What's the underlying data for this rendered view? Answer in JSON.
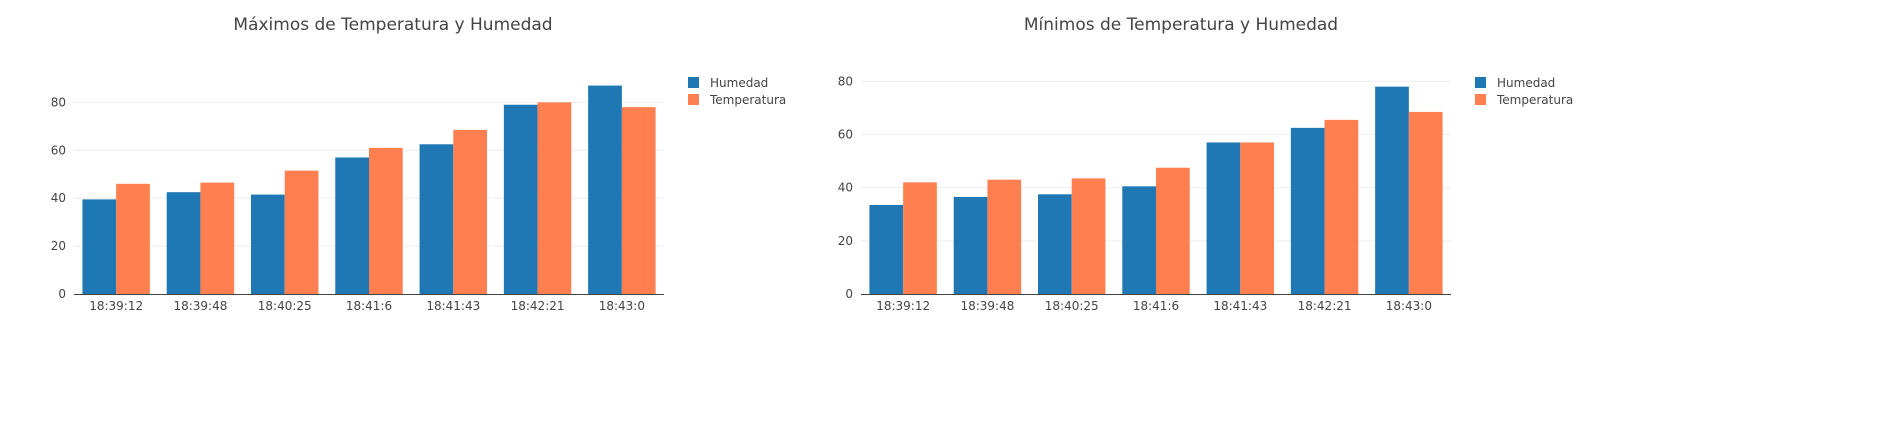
{
  "chart_data": [
    {
      "type": "bar",
      "title": "Máximos de Temperatura y Humedad",
      "xlabel": "",
      "ylabel": "",
      "categories": [
        "18:39:12",
        "18:39:48",
        "18:40:25",
        "18:41:6",
        "18:41:43",
        "18:42:21",
        "18:43:0"
      ],
      "series": [
        {
          "name": "Humedad",
          "color": "#1f77b4",
          "values": [
            39.5,
            42.5,
            41.5,
            57,
            62.5,
            79,
            87
          ]
        },
        {
          "name": "Temperatura",
          "color": "#ff7f50",
          "values": [
            46,
            46.5,
            51.5,
            61,
            68.5,
            80,
            78
          ]
        }
      ],
      "ylim": [
        0,
        91
      ],
      "yticks": [
        0,
        20,
        40,
        60,
        80
      ],
      "grid": true,
      "legend": "top-right"
    },
    {
      "type": "bar",
      "title": "Mínimos de Temperatura y Humedad",
      "xlabel": "",
      "ylabel": "",
      "categories": [
        "18:39:12",
        "18:39:48",
        "18:40:25",
        "18:41:6",
        "18:41:43",
        "18:42:21",
        "18:43:0"
      ],
      "series": [
        {
          "name": "Humedad",
          "color": "#1f77b4",
          "values": [
            33.5,
            36.5,
            37.5,
            40.5,
            57,
            62.5,
            78
          ]
        },
        {
          "name": "Temperatura",
          "color": "#ff7f50",
          "values": [
            42,
            43,
            43.5,
            47.5,
            57,
            65.5,
            68.5
          ]
        }
      ],
      "ylim": [
        0,
        82
      ],
      "yticks": [
        0,
        20,
        40,
        60,
        80
      ],
      "grid": true,
      "legend": "top-right"
    }
  ]
}
